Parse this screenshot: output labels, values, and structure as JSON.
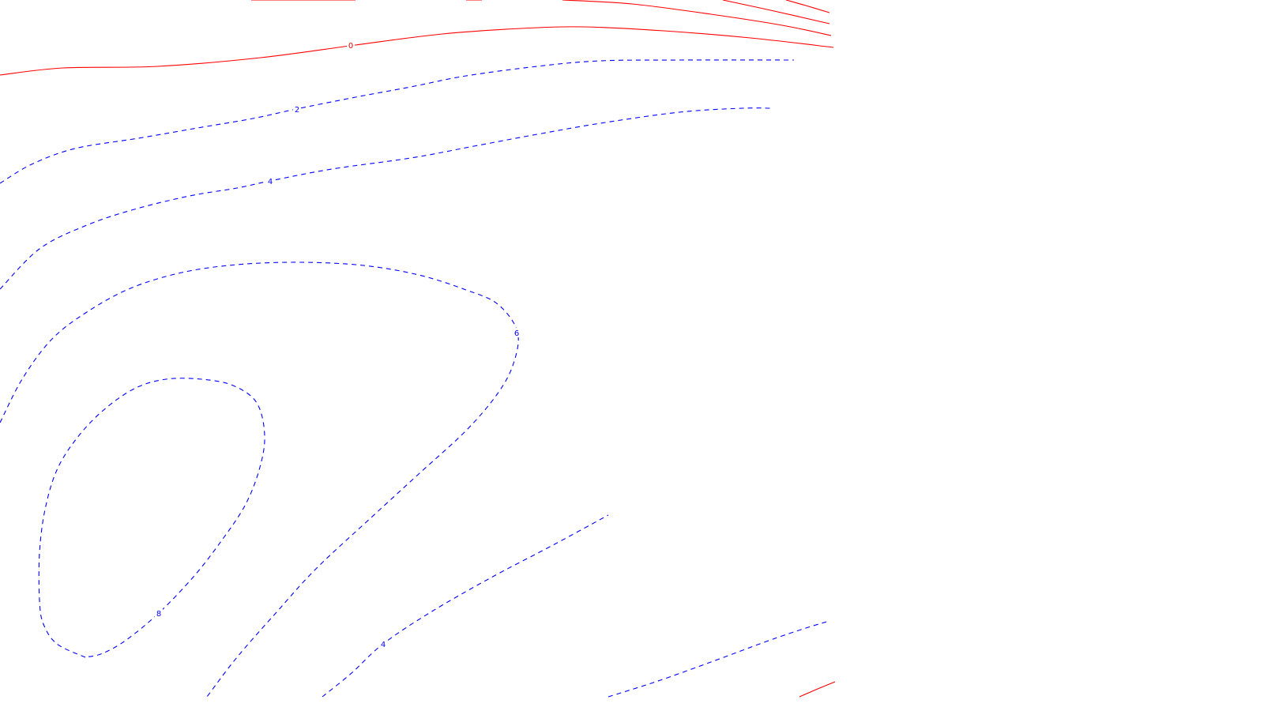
{
  "chart_data": {
    "type": "contour",
    "title": "",
    "xlabel": "",
    "ylabel": "",
    "grid": false,
    "legend": "none",
    "colors": {
      "negative_or_zero": "#ff0000",
      "positive": "#0000ff",
      "background": "#ffffff"
    },
    "line_styles": {
      "negative_or_zero": "solid",
      "positive": "dashed"
    },
    "contour_levels": [
      -6,
      -4,
      -2,
      0,
      2,
      4,
      6,
      8
    ],
    "labeled_levels": [
      {
        "level": 0,
        "text": "0"
      },
      {
        "level": 2,
        "text": "2"
      },
      {
        "level": 4,
        "text": "4"
      },
      {
        "level": 6,
        "text": "6"
      },
      {
        "level": 8,
        "text": "8"
      },
      {
        "level": 4,
        "text": "4"
      }
    ]
  }
}
